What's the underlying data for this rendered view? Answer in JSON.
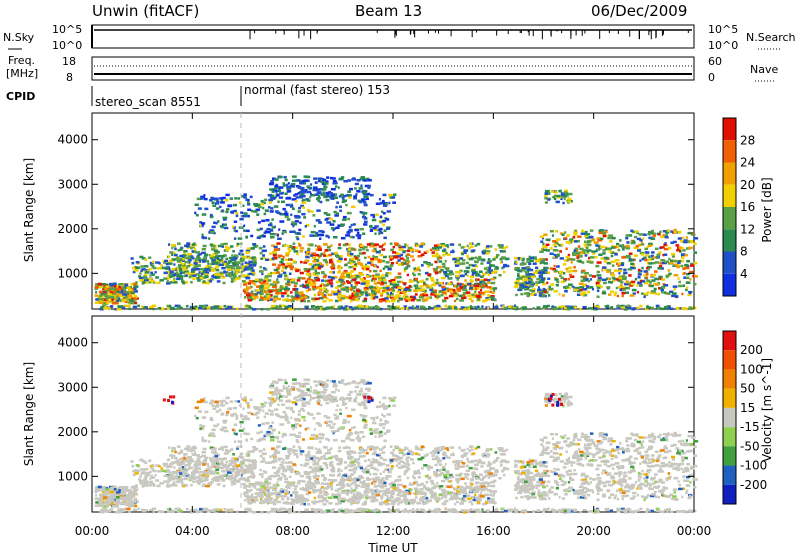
{
  "header": {
    "station": "Unwin (fitACF)",
    "beam": "Beam 13",
    "date": "06/Dec/2009"
  },
  "top_panels": {
    "nsky_label": "N.Sky",
    "nsky_scale_high": "10^5",
    "nsky_scale_low": "10^0",
    "nsearch_label": "N.Search",
    "nsearch_scale_high": "10^5",
    "nsearch_scale_low": "10^0",
    "freq_label_1": "Freq.",
    "freq_label_2": "[MHz]",
    "freq_high": "18",
    "freq_low": "8",
    "nave_label": "Nave",
    "nave_high": "60",
    "nave_low": "0",
    "cpid_label": "CPID",
    "cpid_1": "stereo_scan 8551",
    "cpid_2": "normal (fast stereo) 153"
  },
  "colors": {
    "power": [
      "#1030e0",
      "#2050c8",
      "#2a8a50",
      "#58a048",
      "#f0d000",
      "#f0a000",
      "#f06000",
      "#e01000"
    ],
    "velocity": [
      "#e01010",
      "#f05000",
      "#f08000",
      "#f0b000",
      "#c8c8c0",
      "#90d050",
      "#40a040",
      "#2060c0",
      "#1020c0"
    ]
  },
  "chart_data": [
    {
      "type": "heatmap",
      "title": "Power",
      "xlabel": "",
      "ylabel": "Slant Range [km]",
      "colorbar_label": "Power [dB]",
      "colorbar_ticks": [
        "4",
        "8",
        "12",
        "16",
        "20",
        "24",
        "28"
      ],
      "y_ticks": [
        "1000",
        "2000",
        "3000",
        "4000"
      ],
      "ylim": [
        200,
        4600
      ]
    },
    {
      "type": "heatmap",
      "title": "Velocity",
      "xlabel": "Time UT",
      "ylabel": "Slant Range [km]",
      "colorbar_label": "Velocity [m s^-1]",
      "colorbar_ticks": [
        "200",
        "100",
        "50",
        "15",
        "-15",
        "-50",
        "-100",
        "-200"
      ],
      "y_ticks": [
        "1000",
        "2000",
        "3000",
        "4000"
      ],
      "ylim": [
        200,
        4600
      ]
    }
  ],
  "x_axis": {
    "ticks": [
      "00:00",
      "04:00",
      "08:00",
      "12:00",
      "16:00",
      "20:00",
      "00:00"
    ],
    "label": "Time UT"
  }
}
